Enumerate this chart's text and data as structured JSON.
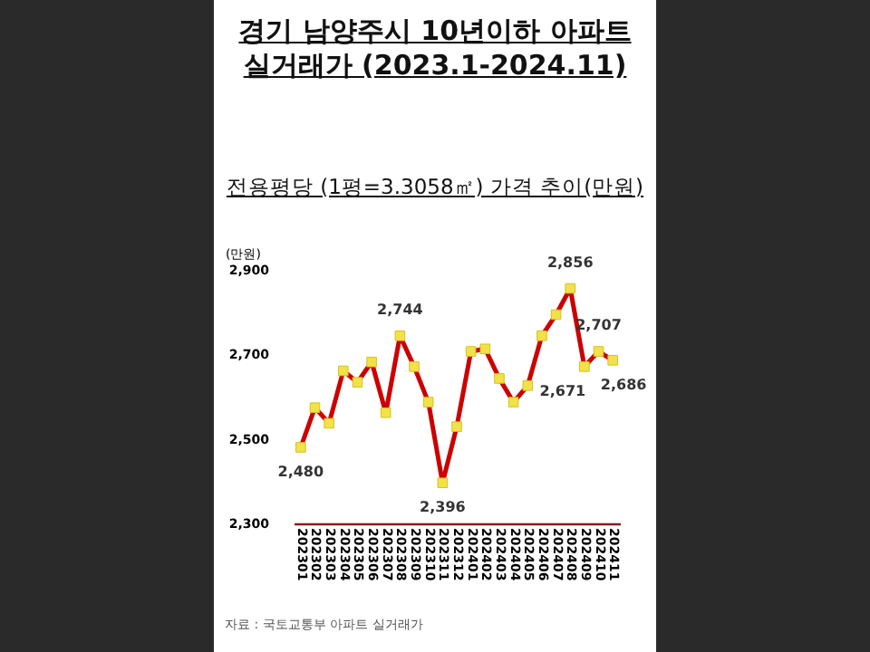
{
  "chart_data": {
    "type": "line",
    "title": "경기 남양주시 10년이하 아파트 실거래가 (2023.1-2024.11)",
    "subtitle": "전용평당 (1평=3.3058㎡) 가격 추이(만원)",
    "ylabel": "(만원)",
    "annotations": [
      "자료 : 국토교통부 아파트 실거래가"
    ],
    "categories": [
      "202301",
      "202302",
      "202303",
      "202304",
      "202305",
      "202306",
      "202307",
      "202308",
      "202309",
      "202310",
      "202311",
      "202312",
      "202401",
      "202402",
      "202403",
      "202404",
      "202405",
      "202406",
      "202407",
      "202408",
      "202409",
      "202410",
      "202411"
    ],
    "series": [
      {
        "color": "#cc0000",
        "values": [
          2480,
          2574,
          2537,
          2661,
          2634,
          2682,
          2562,
          2744,
          2671,
          2587,
          2396,
          2529,
          2707,
          2713,
          2643,
          2587,
          2626,
          2744,
          2794,
          2856,
          2671,
          2707,
          2686
        ],
        "value_labels": [
          "2,480",
          null,
          null,
          null,
          null,
          null,
          null,
          "2,744",
          null,
          null,
          "2,396",
          null,
          null,
          null,
          null,
          null,
          null,
          null,
          null,
          "2,856",
          "2,671",
          "2,707",
          "2,686"
        ]
      }
    ],
    "ylim": [
      2300,
      2900
    ],
    "yticks": [
      {
        "value": 2300,
        "label": "2,300"
      },
      {
        "value": 2500,
        "label": "2,500"
      },
      {
        "value": 2700,
        "label": "2,700"
      },
      {
        "value": 2900,
        "label": "2,900"
      }
    ],
    "marker": "square",
    "line_style": "solid"
  }
}
